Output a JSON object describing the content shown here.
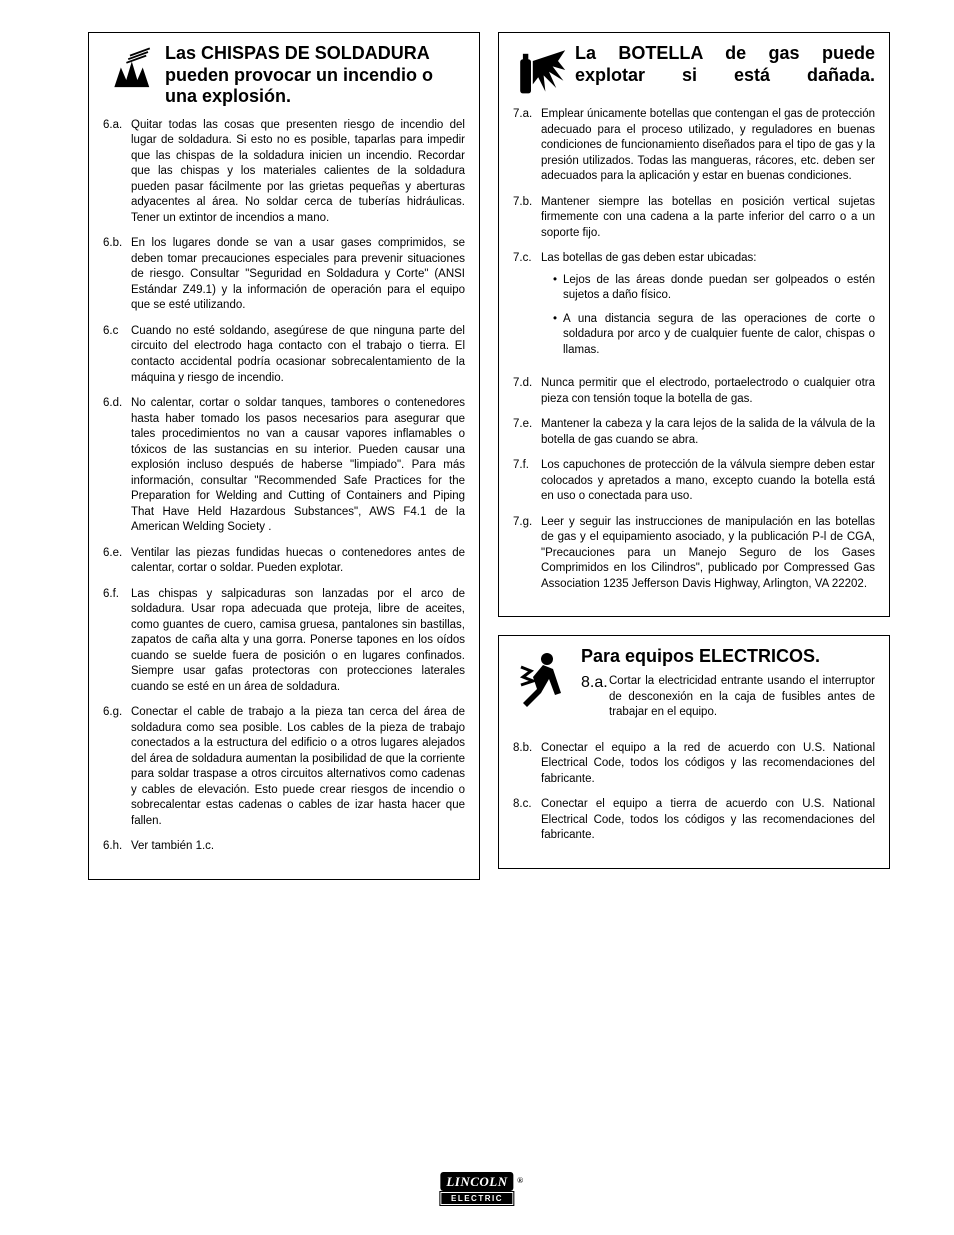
{
  "left": {
    "title": "Las CHISPAS DE SOLDADURA pueden provocar un incendio o una explosión.",
    "items": [
      {
        "label": "6.a.",
        "text": "Quitar todas las cosas que presenten riesgo de incendio del lugar de soldadura. Si esto no es posible, taparlas para impedir que las chispas de la soldadura inicien un incendio. Recordar que las chispas y los materiales calientes de la soldadura pueden pasar fácilmente por las grietas pequeñas y aberturas adyacentes al área. No soldar cerca de tuberías hidráulicas. Tener un extintor de incendios a mano."
      },
      {
        "label": "6.b.",
        "text": "En los lugares donde se van a usar gases comprimidos, se deben tomar precauciones especiales para prevenir situaciones de riesgo. Consultar \"Seguridad en Soldadura y Corte\" (ANSI Estándar Z49.1) y la información de operación para el equipo que se esté utilizando."
      },
      {
        "label": "6.c",
        "text": "Cuando no esté soldando, asegúrese de que ninguna parte del circuito del electrodo haga contacto con el trabajo o tierra. El contacto accidental podría ocasionar sobrecalentamiento de la máquina y  riesgo de incendio."
      },
      {
        "label": "6.d.",
        "text": "No calentar, cortar o soldar tanques, tambores o contenedores hasta haber tomado los pasos necesarios para asegurar que tales procedimientos no van a causar vapores inflamables o tóxicos de las sustancias en su interior. Pueden causar una explosión incluso después de haberse \"limpiado\". Para más información, consultar \"Recommended Safe Practices for the Preparation for Welding and Cutting of Containers and Piping That Have Held Hazardous Substances\", AWS F4.1 de la American Welding Society ."
      },
      {
        "label": "6.e.",
        "text": "Ventilar las piezas fundidas huecas o contenedores antes de calentar, cortar o soldar. Pueden explotar."
      },
      {
        "label": "6.f.",
        "text": "Las chispas y salpicaduras son lanzadas por el arco de soldadura. Usar ropa adecuada que proteja, libre de aceites, como guantes de cuero, camisa gruesa, pantalones sin bastillas, zapatos de caña alta y una gorra. Ponerse tapones en los oídos cuando se suelde fuera de posición o en lugares confinados. Siempre usar gafas protectoras con protecciones laterales cuando se esté en un área de soldadura."
      },
      {
        "label": "6.g.",
        "text": "Conectar el cable de trabajo a la pieza tan cerca del área de soldadura como sea posible. Los cables de la pieza de trabajo conectados a la estructura del edificio o a otros lugares alejados del área de soldadura aumentan la posibilidad de que la corriente para soldar traspase a otros circuitos alternativos como cadenas y cables de elevación. Esto puede crear riesgos de incendio o sobrecalentar estas cadenas o cables de izar hasta hacer que fallen."
      },
      {
        "label": "6.h.",
        "text": "Ver también 1.c."
      }
    ]
  },
  "rightTop": {
    "title": "La BOTELLA de gas puede explotar si está dañada.",
    "items": [
      {
        "label": "7.a.",
        "text": "Emplear únicamente botellas que contengan el gas de protección adecuado para el proceso utilizado, y reguladores en buenas condiciones de funcionamiento diseñados para el tipo de gas y la presión utilizados. Todas las mangueras, rácores, etc. deben ser adecuados para la aplicación y estar en buenas condiciones."
      },
      {
        "label": "7.b.",
        "text": "Mantener siempre las botellas en posición vertical sujetas firmemente con una cadena a la parte inferior del carro o a un soporte fijo."
      },
      {
        "label": "7.c.",
        "text": "Las botellas de gas deben estar ubicadas:",
        "sub": [
          "Lejos de las áreas donde puedan ser golpeados o estén sujetos a daño físico.",
          "A una distancia segura de las operaciones de corte o soldadura por arco y de cualquier fuente de calor, chispas o llamas."
        ]
      },
      {
        "label": "7.d.",
        "text": "Nunca permitir que el electrodo, portaelectrodo o cualquier otra pieza con tensión toque la botella de gas."
      },
      {
        "label": "7.e.",
        "text": "Mantener la cabeza y la cara lejos de la salida de la válvula de la botella de gas cuando se abra."
      },
      {
        "label": "7.f.",
        "text": "Los capuchones de protección de la válvula siempre deben estar colocados y apretados a mano, excepto cuando la botella está en uso o conectada para uso."
      },
      {
        "label": "7.g.",
        "text": "Leer y seguir las instrucciones de manipulación en las botellas de gas y el equipamiento asociado, y la publicación P-l de CGA, \"Precauciones para un Manejo Seguro de los Gases Comprimidos en los Cilindros\", publicado por Compressed Gas Association 1235 Jefferson Davis Highway, Arlington, VA 22202."
      }
    ]
  },
  "rightBot": {
    "title": "Para equipos ELECTRICOS.",
    "firstItem": {
      "label": "8.a.",
      "text": "Cortar la electricidad entrante usando el interruptor de desconexión en la caja de fusibles antes de trabajar en el equipo."
    },
    "items": [
      {
        "label": "8.b.",
        "text": "Conectar el equipo a la red de acuerdo con U.S. National Electrical Code, todos los códigos y las recomendaciones del fabricante."
      },
      {
        "label": "8.c.",
        "text": "Conectar el equipo a tierra de acuerdo con U.S. National Electrical Code, todos los códigos y las recomendaciones del fabricante."
      }
    ]
  },
  "logo": {
    "top": "LINCOLN",
    "bot": "ELECTRIC"
  }
}
